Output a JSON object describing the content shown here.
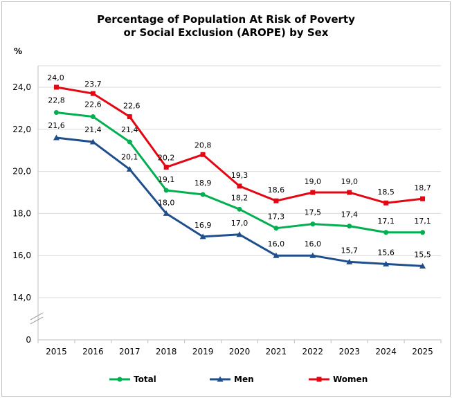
{
  "chart_data": {
    "type": "line",
    "title_lines": [
      "Percentage of Population At Risk of Poverty",
      "or Social Exclusion (AROPE) by Sex"
    ],
    "ylabel": "%",
    "xlabel": "",
    "categories": [
      "2015",
      "2016",
      "2017",
      "2018",
      "2019",
      "2020",
      "2021",
      "2022",
      "2023",
      "2024",
      "2025"
    ],
    "ylim": [
      14,
      25
    ],
    "yticks": [
      14,
      16,
      18,
      20,
      22,
      24
    ],
    "ytick_labels": [
      "14,0",
      "16,0",
      "18,0",
      "20,0",
      "22,0",
      "24,0"
    ],
    "axis_break_label": "0",
    "grid": true,
    "legend_position": "bottom",
    "series": [
      {
        "name": "Total",
        "color": "#00b050",
        "marker": "circle",
        "values": [
          22.8,
          22.6,
          21.4,
          19.1,
          18.9,
          18.2,
          17.3,
          17.5,
          17.4,
          17.1,
          17.1
        ],
        "labels": [
          "22,8",
          "22,6",
          "21,4",
          "19,1",
          "18,9",
          "18,2",
          "17,3",
          "17,5",
          "17,4",
          "17,1",
          "17,1"
        ]
      },
      {
        "name": "Men",
        "color": "#1f4e8c",
        "marker": "triangle",
        "values": [
          21.6,
          21.4,
          20.1,
          18.0,
          16.9,
          17.0,
          16.0,
          16.0,
          15.7,
          15.6,
          15.5
        ],
        "labels": [
          "21,6",
          "21,4",
          "20,1",
          "18,0",
          "16,9",
          "17,0",
          "16,0",
          "16,0",
          "15,7",
          "15,6",
          "15,5"
        ]
      },
      {
        "name": "Women",
        "color": "#e30613",
        "marker": "square",
        "values": [
          24.0,
          23.7,
          22.6,
          20.2,
          20.8,
          19.3,
          18.6,
          19.0,
          19.0,
          18.5,
          18.7
        ],
        "labels": [
          "24,0",
          "23,7",
          "22,6",
          "20,2",
          "20,8",
          "19,3",
          "18,6",
          "19,0",
          "19,0",
          "18,5",
          "18,7"
        ]
      }
    ]
  }
}
